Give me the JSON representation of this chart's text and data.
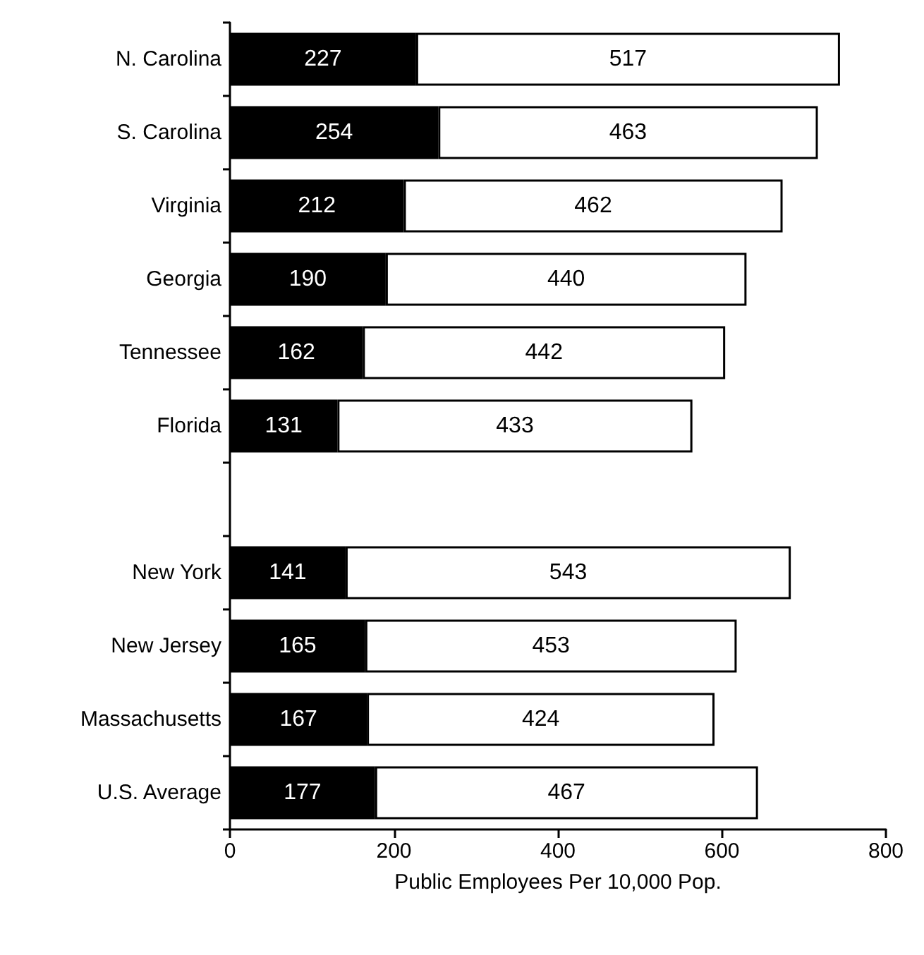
{
  "chart_data": {
    "type": "bar",
    "orientation": "horizontal",
    "stacked": true,
    "data_labels": true,
    "xlabel": "Public Employees Per 10,000 Pop.",
    "categories": [
      "N. Carolina",
      "S. Carolina",
      "Virginia",
      "Georgia",
      "Tennessee",
      "Florida",
      null,
      "New York",
      "New Jersey",
      "Massachusetts",
      "U.S. Average"
    ],
    "series": [
      {
        "color": "#000000",
        "values": [
          227,
          254,
          212,
          190,
          162,
          131,
          null,
          141,
          165,
          167,
          177
        ]
      },
      {
        "color": "#ffffff",
        "values": [
          517,
          463,
          462,
          440,
          442,
          433,
          null,
          543,
          453,
          424,
          467
        ]
      }
    ],
    "xlim": [
      0,
      800
    ],
    "xticks": [
      0,
      200,
      400,
      600,
      800
    ]
  }
}
